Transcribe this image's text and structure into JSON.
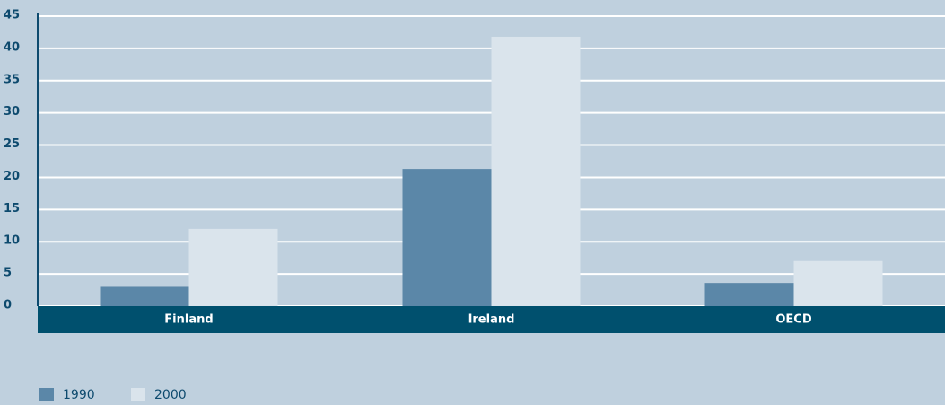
{
  "chart_data": {
    "type": "bar",
    "categories": [
      "Finland",
      "Ireland",
      "OECD"
    ],
    "series": [
      {
        "name": "1990",
        "color": "#5b87a8",
        "values": [
          3,
          21.3,
          3.6
        ]
      },
      {
        "name": "2000",
        "color": "#dae4ec",
        "values": [
          12,
          41.8,
          7
        ]
      }
    ],
    "ylim": [
      0,
      45
    ],
    "yticks": [
      0,
      5,
      10,
      15,
      20,
      25,
      30,
      35,
      40,
      45
    ],
    "grid": true
  }
}
